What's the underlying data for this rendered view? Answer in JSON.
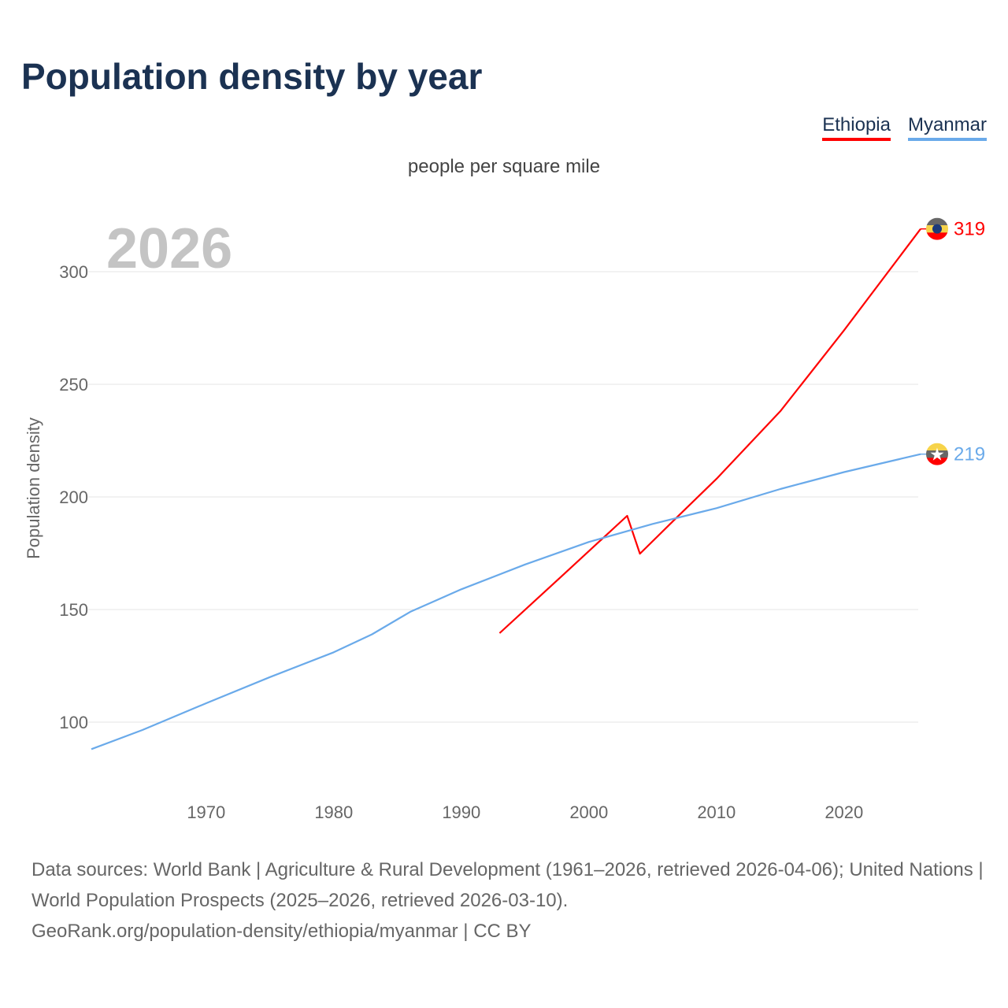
{
  "chart_data": {
    "type": "line",
    "title": "Population density by year",
    "subtitle": "people per square mile",
    "ylabel": "Population density",
    "xlabel": "",
    "year_label": "2026",
    "xlim": [
      1961,
      2026
    ],
    "ylim": [
      70,
      330
    ],
    "xticks": [
      1970,
      1980,
      1990,
      2000,
      2010,
      2020
    ],
    "yticks": [
      100,
      150,
      200,
      250,
      300
    ],
    "grid": true,
    "legend_position": "top-right",
    "series": [
      {
        "name": "Ethiopia",
        "color": "#ff0000",
        "end_label": "319",
        "points": [
          [
            1993,
            139.5
          ],
          [
            1998,
            165.5
          ],
          [
            2003,
            191.6
          ],
          [
            2004,
            174.8
          ],
          [
            2007,
            191.5
          ],
          [
            2010,
            208
          ],
          [
            2015,
            238
          ],
          [
            2020,
            274
          ],
          [
            2026,
            319
          ]
        ]
      },
      {
        "name": "Myanmar",
        "color": "#6aaaea",
        "end_label": "219",
        "points": [
          [
            1961,
            88
          ],
          [
            1965,
            96.5
          ],
          [
            1970,
            108.4
          ],
          [
            1975,
            120
          ],
          [
            1980,
            131
          ],
          [
            1983,
            139
          ],
          [
            1986,
            149
          ],
          [
            1990,
            159
          ],
          [
            1995,
            170
          ],
          [
            2000,
            180
          ],
          [
            2005,
            188
          ],
          [
            2010,
            195
          ],
          [
            2015,
            203.5
          ],
          [
            2020,
            211
          ],
          [
            2026,
            219
          ]
        ]
      }
    ]
  },
  "footer": {
    "line1": "Data sources: World Bank | Agriculture & Rural Development (1961–2026, retrieved 2026-04-06); United Nations | World Population Prospects (2025–2026, retrieved 2026-03-10).",
    "line2": "GeoRank.org/population-density/ethiopia/myanmar | CC BY"
  }
}
